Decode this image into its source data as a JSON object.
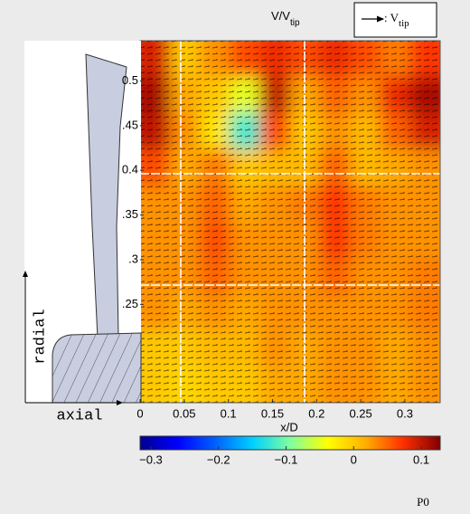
{
  "chart_data": {
    "type": "heatmap",
    "colorbar_label": {
      "text": "V/V",
      "subscript": "tip"
    },
    "legend": {
      "text": ": V",
      "subscript": "tip"
    },
    "xlabel": "x/D",
    "annotations": {
      "radial": "radial",
      "axial": "axial",
      "panel": "P0"
    },
    "xlim": [
      0,
      0.34
    ],
    "ylim": [
      0.14,
      0.545
    ],
    "xticks": [
      0,
      0.05,
      0.1,
      0.15,
      0.2,
      0.25,
      0.3
    ],
    "yticks": [
      0.5,
      {
        "value": 0.45,
        "label": ".45"
      },
      0.4,
      {
        "value": 0.35,
        "label": ".35"
      },
      {
        "value": 0.3,
        "label": ".3"
      },
      {
        "value": 0.25,
        "label": ".25"
      }
    ],
    "clim": [
      -0.316,
      0.128
    ],
    "cticks": [
      {
        "value": -0.3,
        "label": "−0.3"
      },
      {
        "value": -0.2,
        "label": "−0.2"
      },
      {
        "value": -0.1,
        "label": "−0.1"
      },
      0,
      0.1
    ],
    "colormap": [
      "#00008f",
      "#0000ff",
      "#0060ff",
      "#00d0ff",
      "#80ffa0",
      "#ffff00",
      "#ffb000",
      "#ff3000",
      "#800000"
    ],
    "x": [
      0.017,
      0.051,
      0.085,
      0.119,
      0.153,
      0.187,
      0.221,
      0.255,
      0.289,
      0.323
    ],
    "y": [
      0.5248,
      0.4843,
      0.4438,
      0.4033,
      0.3628,
      0.3223,
      0.2818,
      0.2413,
      0.2008,
      0.1603
    ],
    "z": [
      [
        0.09,
        0.0,
        0.03,
        0.06,
        0.08,
        0.06,
        0.08,
        0.06,
        0.04,
        0.07
      ],
      [
        0.11,
        0.02,
        0.0,
        -0.05,
        0.1,
        0.02,
        0.05,
        0.03,
        0.08,
        0.11
      ],
      [
        0.1,
        0.03,
        -0.02,
        -0.12,
        0.06,
        0.0,
        0.03,
        0.01,
        0.05,
        0.09
      ],
      [
        0.06,
        0.02,
        0.04,
        0.0,
        0.01,
        0.01,
        0.05,
        0.01,
        0.02,
        0.03
      ],
      [
        0.03,
        0.03,
        0.05,
        0.02,
        0.03,
        0.04,
        0.07,
        0.04,
        0.03,
        0.03
      ],
      [
        0.03,
        0.03,
        0.06,
        0.03,
        0.03,
        0.03,
        0.07,
        0.04,
        0.03,
        0.03
      ],
      [
        0.03,
        0.03,
        0.05,
        0.03,
        0.03,
        0.03,
        0.05,
        0.03,
        0.03,
        0.04
      ],
      [
        0.03,
        0.02,
        0.03,
        0.02,
        0.03,
        0.03,
        0.03,
        0.03,
        0.03,
        0.04
      ],
      [
        0.0,
        0.0,
        0.01,
        0.01,
        0.03,
        0.02,
        0.03,
        0.03,
        0.02,
        0.03
      ],
      [
        0.0,
        -0.01,
        0.0,
        0.0,
        0.02,
        0.02,
        0.03,
        0.03,
        0.02,
        0.03
      ]
    ]
  }
}
